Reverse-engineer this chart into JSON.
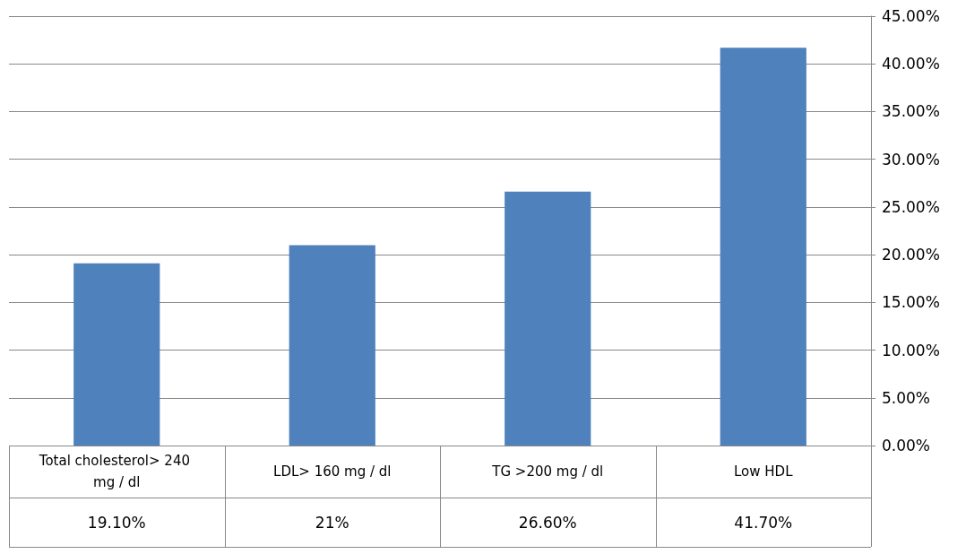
{
  "chart_data": {
    "type": "bar",
    "categories": [
      "Total cholesterol> 240 mg / dl",
      "LDL> 160 mg / dl",
      "TG >200 mg / dl",
      "Low HDL"
    ],
    "values": [
      19.1,
      21,
      26.6,
      41.7
    ],
    "color": "#4f81bd",
    "value_labels": [
      "19.10%",
      "21%",
      "26.60%",
      "41.70%"
    ],
    "ylim": [
      0,
      45
    ],
    "yticks": [
      {
        "value": 0,
        "label": "0.00%"
      },
      {
        "value": 5,
        "label": "5.00%"
      },
      {
        "value": 10,
        "label": "10.00%"
      },
      {
        "value": 15,
        "label": "15.00%"
      },
      {
        "value": 20,
        "label": "20.00%"
      },
      {
        "value": 25,
        "label": "25.00%"
      },
      {
        "value": 30,
        "label": "30.00%"
      },
      {
        "value": 35,
        "label": "35.00%"
      },
      {
        "value": 40,
        "label": "40.00%"
      },
      {
        "value": 45,
        "label": "45.00%"
      }
    ],
    "grid": "y"
  }
}
